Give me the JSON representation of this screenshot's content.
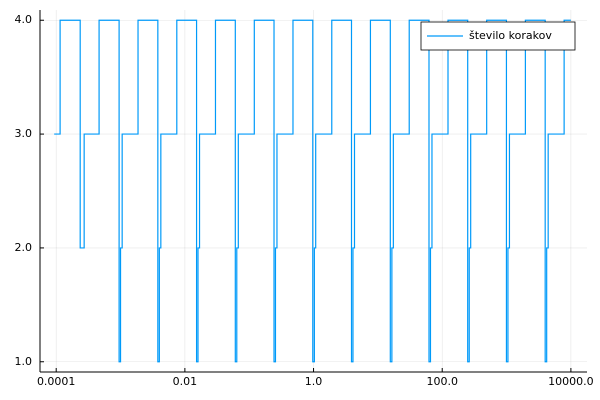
{
  "chart_data": {
    "type": "step",
    "log_x": true,
    "grid": true,
    "legend": "topright",
    "x": [
      9.3e-05,
      0.000115,
      0.000236,
      0.000272,
      0.000464,
      0.00095,
      0.001,
      0.00106,
      0.00187,
      0.0038,
      0.00401,
      0.00423,
      0.00749,
      0.0152,
      0.016,
      0.0169,
      0.0299,
      0.0608,
      0.0641,
      0.0677,
      0.12,
      0.243,
      0.256,
      0.27,
      0.479,
      0.973,
      1.03,
      1.08,
      1.92,
      3.89,
      4.1,
      4.33,
      7.66,
      15.6,
      16.5,
      17.4,
      30.7,
      62.3,
      65.7,
      69.3,
      123,
      249,
      263,
      277,
      491,
      996,
      1051,
      1109,
      1962,
      3985,
      4204,
      4435,
      7850,
      10000
    ],
    "series": [
      {
        "name": "število korakov",
        "color": "#009af9",
        "values": [
          3,
          4,
          2,
          3,
          4,
          1,
          2,
          3,
          4,
          1,
          2,
          3,
          4,
          1,
          2,
          3,
          4,
          1,
          2,
          3,
          4,
          1,
          2,
          3,
          4,
          1,
          2,
          3,
          4,
          1,
          2,
          3,
          4,
          1,
          2,
          3,
          4,
          1,
          2,
          3,
          4,
          1,
          2,
          3,
          4,
          1,
          2,
          3,
          4,
          1,
          2,
          3,
          4,
          4
        ]
      }
    ],
    "xlim": [
      5.6e-05,
      17800
    ],
    "xticks": [
      0.0001,
      0.01,
      {
        "value": 1,
        "label": "1.0"
      },
      {
        "value": 100,
        "label": "100.0"
      },
      {
        "value": 10000,
        "label": "10000.0"
      }
    ],
    "ylim": [
      0.91,
      4.09
    ],
    "yticks": [
      {
        "value": 1,
        "label": "1.0"
      },
      {
        "value": 2,
        "label": "2.0"
      },
      {
        "value": 3,
        "label": "3.0"
      },
      {
        "value": 4,
        "label": "4.0"
      }
    ]
  }
}
